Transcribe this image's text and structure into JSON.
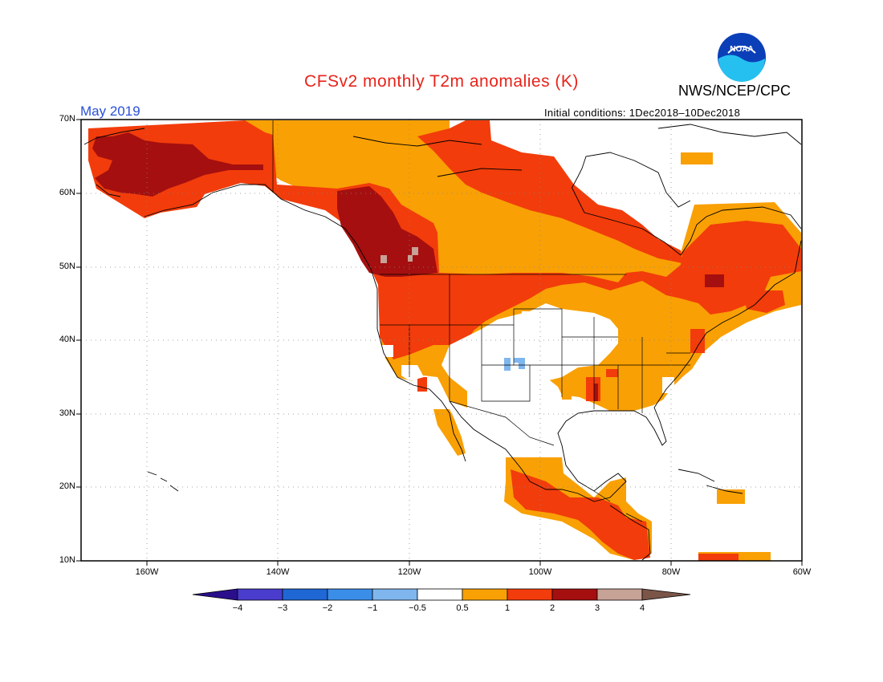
{
  "header": {
    "title": "CFSv2 monthly T2m anomalies (K)",
    "agency": "NWS/NCEP/CPC",
    "month": "May 2019",
    "initial_conditions": "Initial conditions: 1Dec2018–10Dec2018",
    "logo_text": "NOAA"
  },
  "map": {
    "lon_range": [
      -170,
      -60
    ],
    "lat_range": [
      10,
      70
    ],
    "lat_labels": [
      "70N",
      "60N",
      "50N",
      "40N",
      "30N",
      "20N",
      "10N"
    ],
    "lon_labels": [
      "160W",
      "140W",
      "120W",
      "100W",
      "80W",
      "60W"
    ],
    "grid": "dotted"
  },
  "colorbar": {
    "labels": [
      "−4",
      "−3",
      "−2",
      "−1",
      "−0.5",
      "0.5",
      "1",
      "2",
      "3",
      "4"
    ],
    "colors": [
      "#2a0f8c",
      "#4a3ccc",
      "#1e67d4",
      "#3b8ee8",
      "#7fb6ee",
      "#ffffff",
      "#f9a004",
      "#f23c0b",
      "#a50f0f",
      "#c7a296",
      "#7a5548"
    ]
  },
  "anomaly_regions": [
    {
      "name": "Alaska",
      "category": "2-3 K"
    },
    {
      "name": "Western Canada",
      "category": "2-3 K"
    },
    {
      "name": "Canada",
      "category": "1-2 K"
    },
    {
      "name": "Pacific Northwest",
      "category": "1-2 K"
    },
    {
      "name": "Eastern US",
      "category": "0.5-1 K"
    },
    {
      "name": "Southern Plains",
      "category": "-0.5-0.5 K"
    },
    {
      "name": "Colorado",
      "category": "-1--0.5 K"
    },
    {
      "name": "Mexico",
      "category": "0.5-1 K"
    },
    {
      "name": "Central America",
      "category": "1-2 K"
    }
  ]
}
